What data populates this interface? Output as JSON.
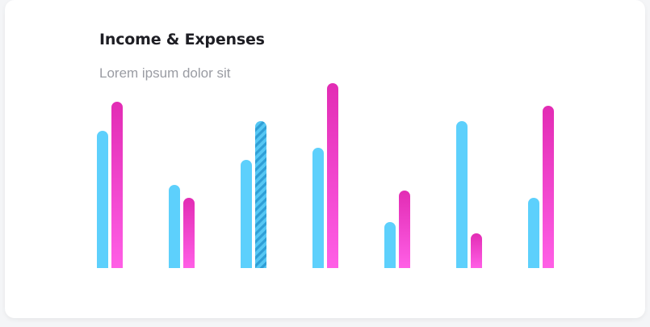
{
  "card": {
    "title": "Income & Expenses",
    "subtitle": "Lorem ipsum dolor sit"
  },
  "chart_data": {
    "type": "bar",
    "title": "Income & Expenses",
    "subtitle": "Lorem ipsum dolor sit",
    "categories": [
      "",
      "",
      "",
      "",
      "",
      "",
      ""
    ],
    "series": [
      {
        "values": [
          170,
          103,
          134,
          149,
          57,
          182,
          87
        ],
        "color": "#5dd0fc"
      },
      {
        "values": [
          206,
          87,
          182,
          229,
          96,
          43,
          201
        ],
        "color_top": "#e22cb4",
        "color_bottom": "#ff5fe6"
      }
    ],
    "ylim": [
      0,
      240
    ],
    "highlighted_bar": {
      "category_index": 2,
      "series_index": 1,
      "style": "striped"
    },
    "grid": false,
    "legend": "none"
  }
}
